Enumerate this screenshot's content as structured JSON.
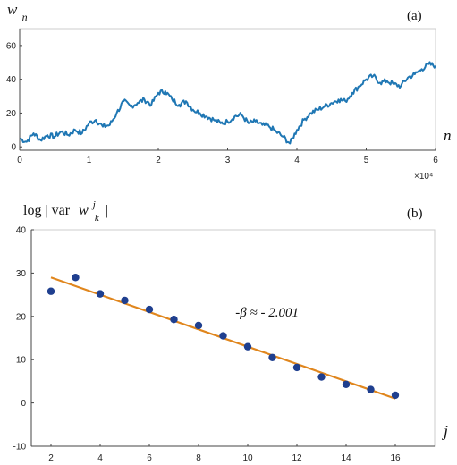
{
  "chart_data": [
    {
      "type": "line",
      "panel_label": "(a)",
      "ylabel": "w_n",
      "ylabel_base": "w",
      "ylabel_sub": "n",
      "xlabel": "n",
      "x_multiplier": "×10⁴",
      "xlim": [
        0,
        6
      ],
      "ylim": [
        -2,
        70
      ],
      "xticks": [
        0,
        1,
        2,
        3,
        4,
        5,
        6
      ],
      "yticks": [
        0,
        20,
        40,
        60
      ],
      "grid": false,
      "color": "#1f77b4",
      "series": [
        {
          "x": [
            0,
            0.1,
            0.2,
            0.3,
            0.4,
            0.5,
            0.6,
            0.7,
            0.8,
            0.9,
            1.0,
            1.1,
            1.2,
            1.3,
            1.4,
            1.5,
            1.6,
            1.7,
            1.8,
            1.9,
            2.0,
            2.1,
            2.2,
            2.3,
            2.4,
            2.5,
            2.6,
            2.7,
            2.8,
            2.9,
            3.0,
            3.1,
            3.2,
            3.3,
            3.4,
            3.5,
            3.6,
            3.7,
            3.8,
            3.9,
            4.0,
            4.1,
            4.2,
            4.3,
            4.4,
            4.5,
            4.6,
            4.7,
            4.8,
            4.9,
            5.0,
            5.1,
            5.2,
            5.3,
            5.4,
            5.5,
            5.6,
            5.7,
            5.8,
            5.9,
            6.0
          ],
          "values": [
            5,
            3,
            8,
            4,
            7,
            6,
            9,
            7,
            10,
            8,
            14,
            16,
            12,
            13,
            20,
            27,
            24,
            26,
            28,
            25,
            32,
            33,
            28,
            25,
            27,
            22,
            20,
            18,
            16,
            14,
            15,
            18,
            19,
            14,
            15,
            13,
            12,
            9,
            6,
            2,
            10,
            16,
            20,
            22,
            24,
            26,
            28,
            27,
            32,
            36,
            40,
            42,
            38,
            39,
            37,
            36,
            41,
            43,
            46,
            49,
            48
          ]
        }
      ]
    },
    {
      "type": "scatter",
      "panel_label": "(b)",
      "ylabel": "log | var w_k^j |",
      "ylabel_prefix": "log | var",
      "ylabel_base": "w",
      "ylabel_sub": "k",
      "ylabel_sup": "j",
      "ylabel_suffix": "|",
      "xlabel": "j",
      "xlim": [
        1.2,
        17.6
      ],
      "ylim": [
        -10,
        40
      ],
      "xticks": [
        2,
        4,
        6,
        8,
        10,
        12,
        14,
        16
      ],
      "yticks": [
        -10,
        0,
        10,
        20,
        30,
        40
      ],
      "grid": false,
      "annotation": "-β ≈ - 2.001",
      "annotation_at": [
        9.5,
        20
      ],
      "point_color": "#1f3f8f",
      "fit_color": "#e0861d",
      "series": [
        {
          "x": [
            2,
            3,
            4,
            5,
            6,
            7,
            8,
            9,
            10,
            11,
            12,
            13,
            14,
            15,
            16
          ],
          "values": [
            25.8,
            29.0,
            25.2,
            23.7,
            21.6,
            19.3,
            17.9,
            15.5,
            13.0,
            10.5,
            8.2,
            6.0,
            4.3,
            3.1,
            1.8
          ]
        }
      ],
      "fit_line": {
        "x": [
          2,
          16
        ],
        "y": [
          29.0,
          1.0
        ]
      }
    }
  ]
}
